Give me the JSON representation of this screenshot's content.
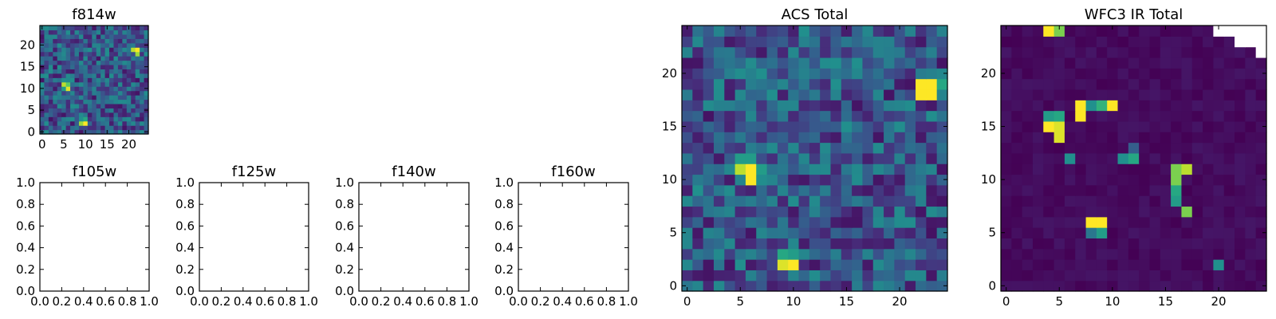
{
  "chart_data": [
    {
      "type": "heatmap",
      "title": "f814w",
      "xlim": [
        -0.5,
        24.5
      ],
      "ylim": [
        -0.5,
        24.5
      ],
      "xticks": [
        0,
        5,
        10,
        15,
        20
      ],
      "yticks": [
        0,
        5,
        10,
        15,
        20
      ],
      "grid_size": 25,
      "background": "noise",
      "features": [
        {
          "x": 22,
          "y": 19,
          "level": 1.0
        },
        {
          "x": 21,
          "y": 19,
          "level": 0.9
        },
        {
          "x": 22,
          "y": 18,
          "level": 0.85
        },
        {
          "x": 5,
          "y": 11,
          "level": 0.9
        },
        {
          "x": 6,
          "y": 11,
          "level": 0.75
        },
        {
          "x": 6,
          "y": 10,
          "level": 0.95
        },
        {
          "x": 5,
          "y": 10,
          "level": 0.55
        },
        {
          "x": 10,
          "y": 2,
          "level": 1.0
        },
        {
          "x": 9,
          "y": 2,
          "level": 0.85
        },
        {
          "x": 10,
          "y": 3,
          "level": 0.6
        },
        {
          "x": 9,
          "y": 3,
          "level": 0.5
        }
      ]
    },
    {
      "type": "empty",
      "title": "f105w",
      "xlim": [
        0,
        1
      ],
      "ylim": [
        0,
        1
      ],
      "xticks": [
        "0.0",
        "0.2",
        "0.4",
        "0.6",
        "0.8",
        "1.0"
      ],
      "yticks": [
        "0.0",
        "0.2",
        "0.4",
        "0.6",
        "0.8",
        "1.0"
      ]
    },
    {
      "type": "empty",
      "title": "f125w",
      "xlim": [
        0,
        1
      ],
      "ylim": [
        0,
        1
      ],
      "xticks": [
        "0.0",
        "0.2",
        "0.4",
        "0.6",
        "0.8",
        "1.0"
      ],
      "yticks": [
        "0.0",
        "0.2",
        "0.4",
        "0.6",
        "0.8",
        "1.0"
      ]
    },
    {
      "type": "empty",
      "title": "f140w",
      "xlim": [
        0,
        1
      ],
      "ylim": [
        0,
        1
      ],
      "xticks": [
        "0.0",
        "0.2",
        "0.4",
        "0.6",
        "0.8",
        "1.0"
      ],
      "yticks": [
        "0.0",
        "0.2",
        "0.4",
        "0.6",
        "0.8",
        "1.0"
      ]
    },
    {
      "type": "empty",
      "title": "f160w",
      "xlim": [
        0,
        1
      ],
      "ylim": [
        0,
        1
      ],
      "xticks": [
        "0.0",
        "0.2",
        "0.4",
        "0.6",
        "0.8",
        "1.0"
      ],
      "yticks": [
        "0.0",
        "0.2",
        "0.4",
        "0.6",
        "0.8",
        "1.0"
      ]
    },
    {
      "type": "heatmap",
      "title": "ACS Total",
      "xlim": [
        -0.5,
        24.5
      ],
      "ylim": [
        -0.5,
        24.5
      ],
      "xticks": [
        0,
        5,
        10,
        15,
        20
      ],
      "yticks": [
        0,
        5,
        10,
        15,
        20
      ],
      "grid_size": 25,
      "background": "noise",
      "features": [
        {
          "x": 22,
          "y": 19,
          "level": 1.0
        },
        {
          "x": 23,
          "y": 19,
          "level": 1.0
        },
        {
          "x": 22,
          "y": 18,
          "level": 1.0
        },
        {
          "x": 23,
          "y": 18,
          "level": 1.0
        },
        {
          "x": 24,
          "y": 19,
          "level": 0.6
        },
        {
          "x": 24,
          "y": 18,
          "level": 0.45
        },
        {
          "x": 5,
          "y": 11,
          "level": 0.9
        },
        {
          "x": 6,
          "y": 11,
          "level": 1.0
        },
        {
          "x": 6,
          "y": 10,
          "level": 1.0
        },
        {
          "x": 5,
          "y": 12,
          "level": 0.55
        },
        {
          "x": 6,
          "y": 12,
          "level": 0.55
        },
        {
          "x": 7,
          "y": 11,
          "level": 0.55
        },
        {
          "x": 5,
          "y": 10,
          "level": 0.45
        },
        {
          "x": 9,
          "y": 2,
          "level": 0.95
        },
        {
          "x": 10,
          "y": 2,
          "level": 1.0
        },
        {
          "x": 9,
          "y": 3,
          "level": 0.6
        },
        {
          "x": 10,
          "y": 3,
          "level": 0.55
        },
        {
          "x": 10,
          "y": 1,
          "level": 0.45
        }
      ]
    },
    {
      "type": "heatmap",
      "title": "WFC3 IR Total",
      "xlim": [
        -0.5,
        24.5
      ],
      "ylim": [
        -0.5,
        24.5
      ],
      "xticks": [
        0,
        5,
        10,
        15,
        20
      ],
      "yticks": [
        0,
        5,
        10,
        15,
        20
      ],
      "grid_size": 25,
      "background": "low",
      "masked": [
        {
          "x": 20,
          "y": 24
        },
        {
          "x": 21,
          "y": 24
        },
        {
          "x": 22,
          "y": 24
        },
        {
          "x": 23,
          "y": 24
        },
        {
          "x": 24,
          "y": 24
        },
        {
          "x": 22,
          "y": 23
        },
        {
          "x": 23,
          "y": 23
        },
        {
          "x": 24,
          "y": 23
        },
        {
          "x": 24,
          "y": 22
        }
      ],
      "features": [
        {
          "x": 4,
          "y": 24,
          "level": 1.0
        },
        {
          "x": 5,
          "y": 24,
          "level": 0.8
        },
        {
          "x": 4,
          "y": 16,
          "level": 0.55
        },
        {
          "x": 5,
          "y": 16,
          "level": 0.6
        },
        {
          "x": 4,
          "y": 15,
          "level": 1.0
        },
        {
          "x": 5,
          "y": 15,
          "level": 0.95
        },
        {
          "x": 5,
          "y": 14,
          "level": 0.95
        },
        {
          "x": 7,
          "y": 17,
          "level": 1.0
        },
        {
          "x": 7,
          "y": 16,
          "level": 1.0
        },
        {
          "x": 8,
          "y": 17,
          "level": 0.5
        },
        {
          "x": 9,
          "y": 17,
          "level": 0.65
        },
        {
          "x": 10,
          "y": 17,
          "level": 1.0
        },
        {
          "x": 6,
          "y": 12,
          "level": 0.5
        },
        {
          "x": 11,
          "y": 12,
          "level": 0.5
        },
        {
          "x": 12,
          "y": 12,
          "level": 0.6
        },
        {
          "x": 12,
          "y": 13,
          "level": 0.3
        },
        {
          "x": 16,
          "y": 11,
          "level": 0.8
        },
        {
          "x": 17,
          "y": 11,
          "level": 0.9
        },
        {
          "x": 16,
          "y": 10,
          "level": 0.8
        },
        {
          "x": 16,
          "y": 9,
          "level": 0.6
        },
        {
          "x": 16,
          "y": 8,
          "level": 0.55
        },
        {
          "x": 17,
          "y": 7,
          "level": 0.8
        },
        {
          "x": 8,
          "y": 6,
          "level": 1.0
        },
        {
          "x": 9,
          "y": 6,
          "level": 1.0
        },
        {
          "x": 8,
          "y": 5,
          "level": 0.4
        },
        {
          "x": 9,
          "y": 5,
          "level": 0.55
        },
        {
          "x": 20,
          "y": 2,
          "level": 0.5
        }
      ]
    }
  ]
}
